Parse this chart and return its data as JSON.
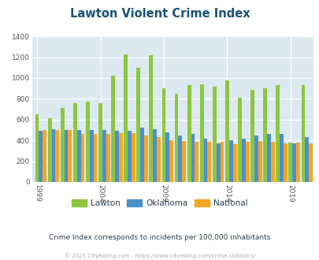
{
  "title": "Lawton Violent Crime Index",
  "subtitle": "Crime Index corresponds to incidents per 100,000 inhabitants",
  "footer": "© 2025 CityRating.com - https://www.cityrating.com/crime-statistics/",
  "years": [
    1999,
    2000,
    2001,
    2002,
    2003,
    2004,
    2005,
    2006,
    2007,
    2008,
    2009,
    2010,
    2011,
    2012,
    2013,
    2014,
    2015,
    2016,
    2017,
    2018,
    2019,
    2020
  ],
  "lawton": [
    655,
    610,
    710,
    760,
    770,
    760,
    1020,
    1230,
    1100,
    1220,
    900,
    845,
    930,
    940,
    920,
    980,
    810,
    885,
    905,
    930,
    380,
    935
  ],
  "oklahoma": [
    490,
    510,
    500,
    500,
    500,
    500,
    490,
    490,
    525,
    505,
    475,
    450,
    465,
    420,
    375,
    405,
    420,
    450,
    460,
    465,
    375,
    435
  ],
  "national": [
    500,
    500,
    500,
    460,
    460,
    460,
    470,
    470,
    450,
    435,
    405,
    395,
    385,
    385,
    385,
    365,
    390,
    395,
    390,
    375,
    380,
    375
  ],
  "bar_colors": {
    "lawton": "#8dc63f",
    "oklahoma": "#4d8fcc",
    "national": "#f5a623"
  },
  "title_color": "#1a5276",
  "subtitle_color": "#2c3e50",
  "footer_color": "#aaaaaa",
  "plot_bg": "#dce9f0",
  "ylim": [
    0,
    1400
  ],
  "yticks": [
    0,
    200,
    400,
    600,
    800,
    1000,
    1200,
    1400
  ],
  "xtick_years": [
    1999,
    2004,
    2009,
    2014,
    2019
  ],
  "grid_color": "#ffffff",
  "legend_labels": [
    "Lawton",
    "Oklahoma",
    "National"
  ]
}
